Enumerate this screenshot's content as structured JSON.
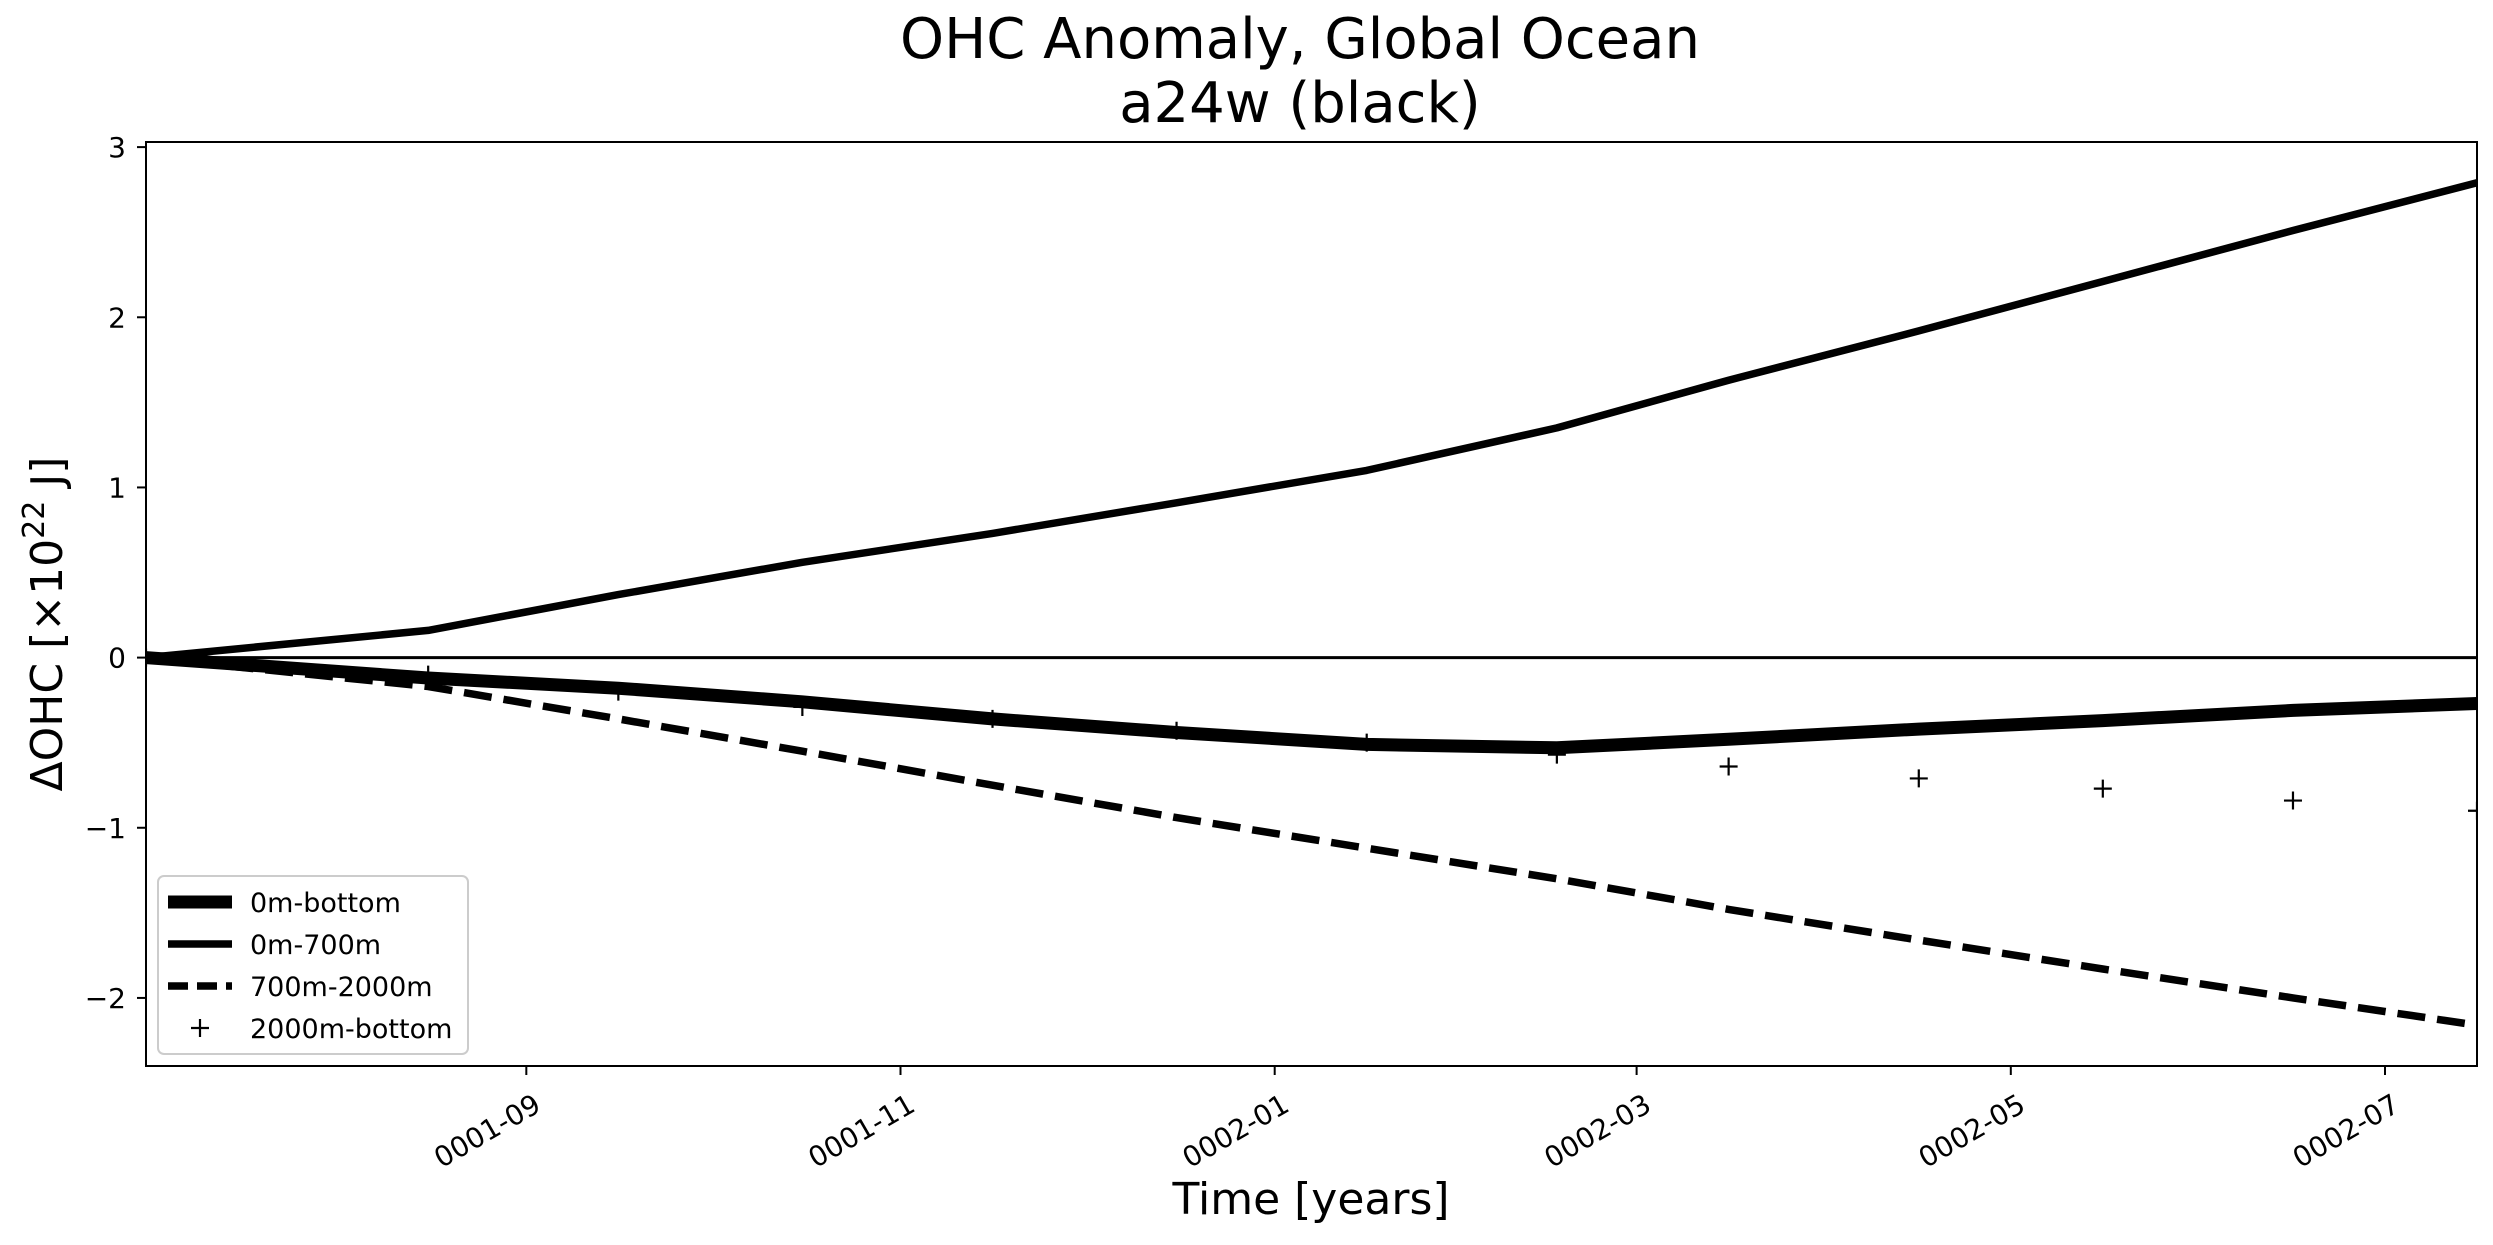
{
  "chart_data": {
    "type": "line",
    "title": "OHC Anomaly, Global Ocean",
    "subtitle": "a24w (black)",
    "xlabel": "Time [years]",
    "ylabel_main": "ΔOHC [×10",
    "ylabel_exp": "22",
    "ylabel_unit": " J]",
    "ylim": [
      -2.4,
      3.03
    ],
    "xlim": [
      "0001-07-01",
      "0002-07-16"
    ],
    "yticks": [
      -2,
      -1,
      0,
      1,
      2,
      3
    ],
    "ytick_labels": [
      "−2",
      "−1",
      "0",
      "1",
      "2",
      "3"
    ],
    "xticks": [
      "0001-09-01",
      "0001-11-01",
      "0002-01-01",
      "0002-03-01",
      "0002-05-01",
      "0002-07-01"
    ],
    "xtick_labels": [
      "0001-09",
      "0001-11",
      "0002-01",
      "0002-03",
      "0002-05",
      "0002-07"
    ],
    "grid": false,
    "zero_line": true,
    "legend_position": "lower-left",
    "color": "#000000",
    "series": [
      {
        "name": "0m-bottom",
        "style": "thick-solid",
        "x": [
          "0001-07-01",
          "0001-08-16",
          "0001-09-16",
          "0001-10-16",
          "0001-11-16",
          "0001-12-16",
          "0002-01-16",
          "0002-02-16",
          "0002-03-16",
          "0002-04-16",
          "0002-05-16",
          "0002-06-16",
          "0002-07-16"
        ],
        "values": [
          0.0,
          -0.12,
          -0.18,
          -0.26,
          -0.36,
          -0.44,
          -0.51,
          -0.53,
          -0.48,
          -0.42,
          -0.37,
          -0.31,
          -0.27
        ]
      },
      {
        "name": "0m-700m",
        "style": "solid",
        "x": [
          "0001-07-01",
          "0001-08-16",
          "0001-09-16",
          "0001-10-16",
          "0001-11-16",
          "0001-12-16",
          "0002-01-16",
          "0002-02-16",
          "0002-03-16",
          "0002-04-16",
          "0002-05-16",
          "0002-06-16",
          "0002-07-16"
        ],
        "values": [
          0.0,
          0.16,
          0.37,
          0.56,
          0.73,
          0.91,
          1.1,
          1.35,
          1.63,
          1.92,
          2.21,
          2.51,
          2.79
        ]
      },
      {
        "name": "700m-2000m",
        "style": "dashed",
        "x": [
          "0001-07-01",
          "0001-08-16",
          "0001-09-16",
          "0001-10-16",
          "0001-11-16",
          "0001-12-16",
          "0002-01-16",
          "0002-02-16",
          "0002-03-16",
          "0002-04-16",
          "0002-05-16",
          "0002-06-16",
          "0002-07-16"
        ],
        "values": [
          0.0,
          -0.17,
          -0.36,
          -0.55,
          -0.75,
          -0.94,
          -1.12,
          -1.3,
          -1.48,
          -1.66,
          -1.83,
          -2.0,
          -2.16
        ]
      },
      {
        "name": "2000m-bottom",
        "style": "plus-markers",
        "x": [
          "0001-07-01",
          "0001-08-16",
          "0001-09-16",
          "0001-10-16",
          "0001-11-16",
          "0001-12-16",
          "0002-01-16",
          "0002-02-16",
          "0002-03-16",
          "0002-04-16",
          "0002-05-16",
          "0002-06-16",
          "0002-07-16"
        ],
        "values": [
          0.0,
          -0.1,
          -0.2,
          -0.29,
          -0.36,
          -0.43,
          -0.5,
          -0.57,
          -0.64,
          -0.71,
          -0.77,
          -0.84,
          -0.9
        ]
      }
    ]
  }
}
